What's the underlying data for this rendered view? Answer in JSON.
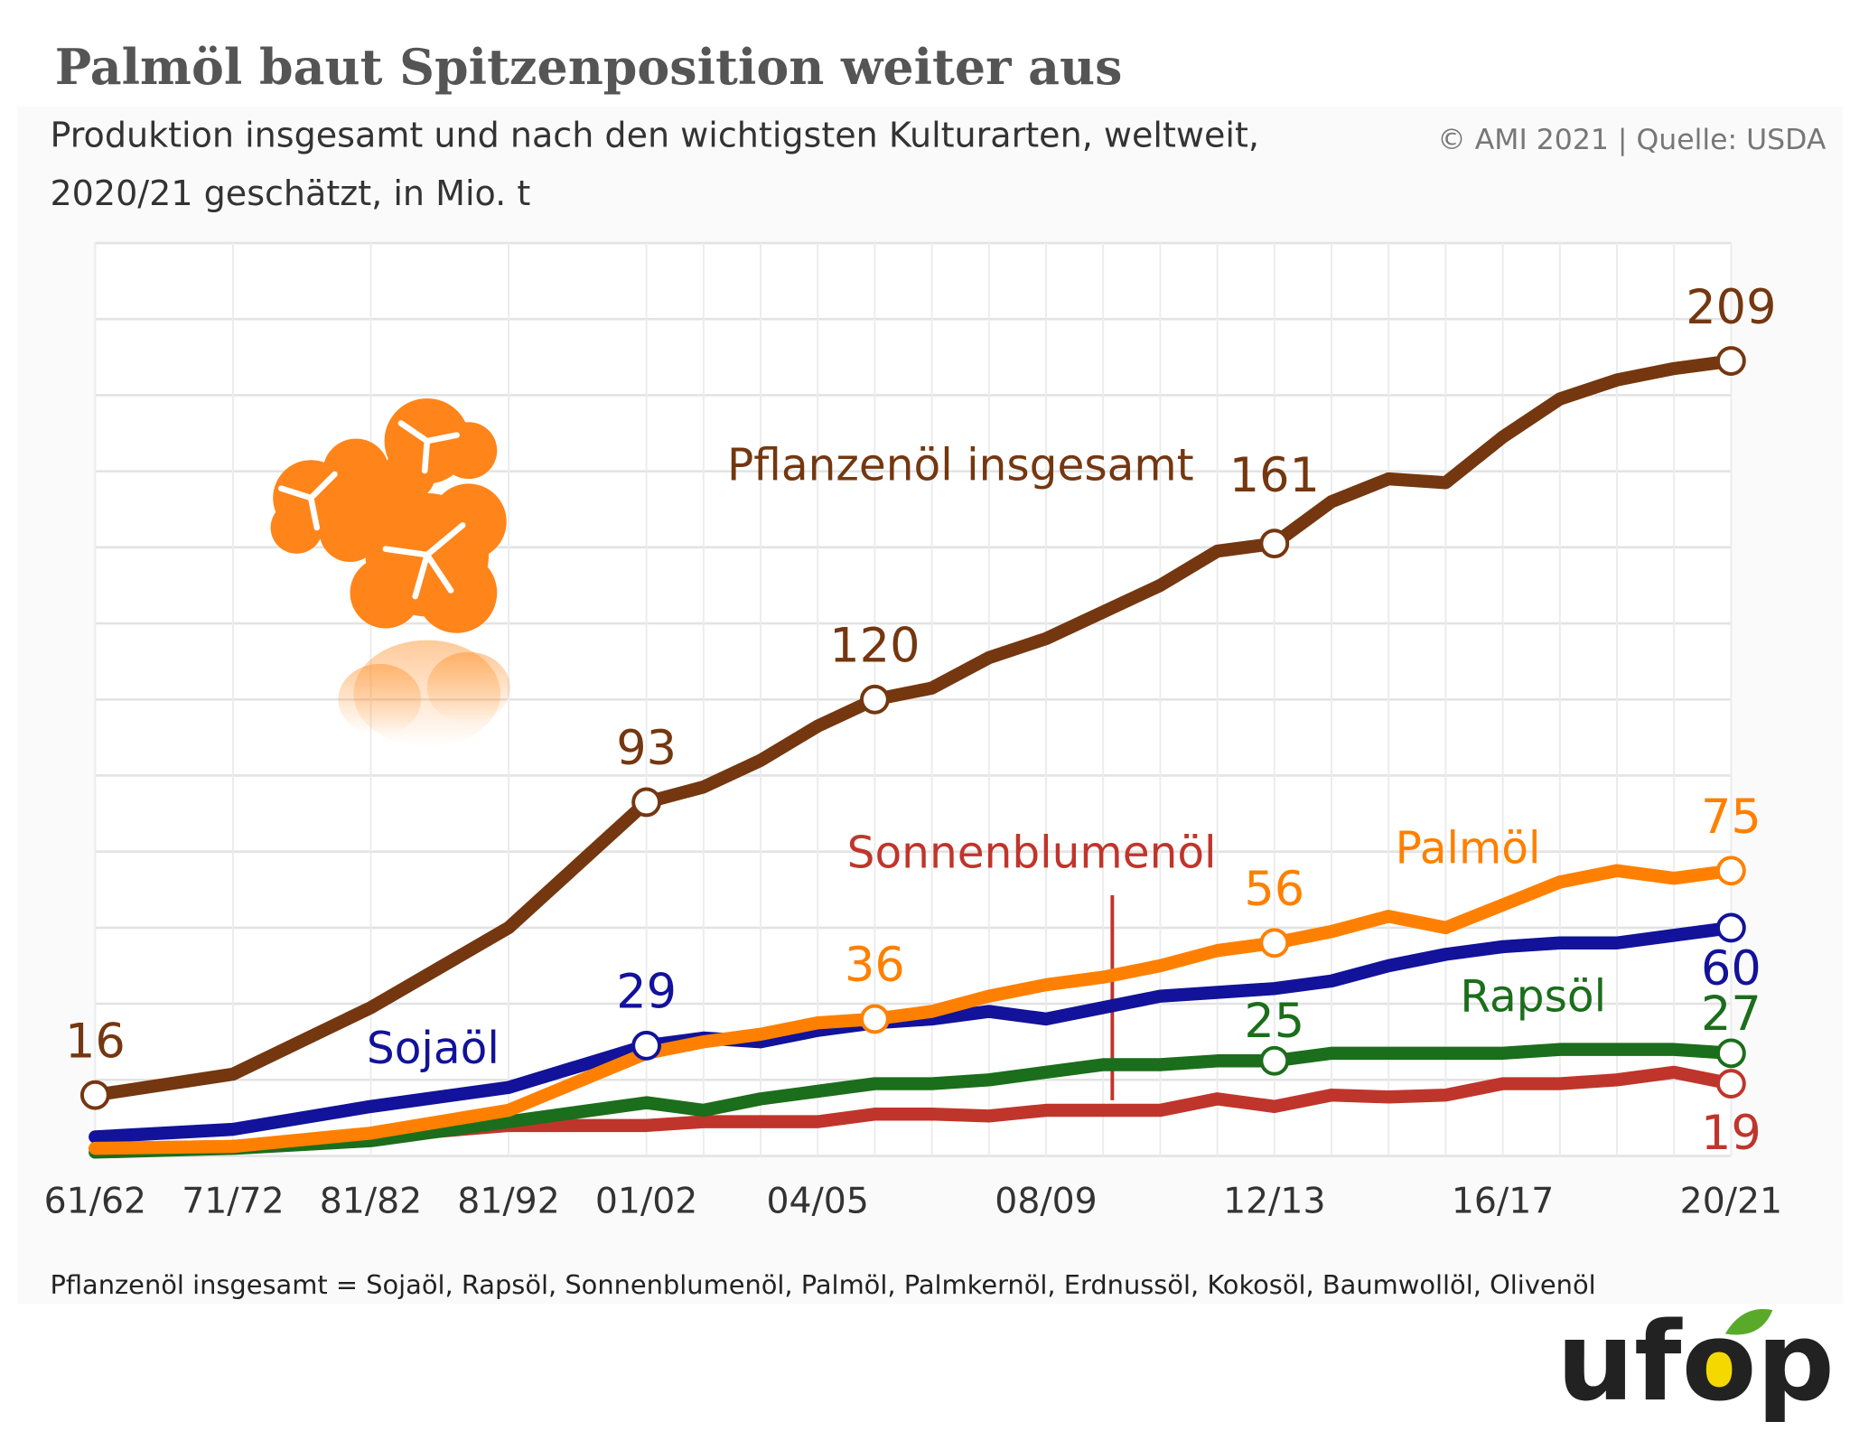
{
  "chart_data": {
    "type": "line",
    "title": "Palmöl baut Spitzenposition weiter aus",
    "subtitle": [
      "Produktion insgesamt und nach den wichtigsten Kulturarten, weltweit,",
      "2020/21 geschätzt, in Mio. t"
    ],
    "source": "© AMI 2021 | Quelle: USDA",
    "footnote": "Pflanzenöl insgesamt = Sojaöl, Rapsöl, Sonnenblumenöl, Palmöl, Palmkernöl, Erdnussöl, Kokosöl, Baumwollöl, Olivenöl",
    "logo": "ufop",
    "categories": [
      "61/62",
      "71/72",
      "81/82",
      "81/92",
      "01/02",
      null,
      null,
      "04/05",
      null,
      null,
      null,
      "08/09",
      null,
      null,
      null,
      "12/13",
      null,
      null,
      null,
      "16/17",
      null,
      null,
      null,
      "20/21"
    ],
    "ylim": [
      0,
      240
    ],
    "yticks": [
      0,
      20,
      40,
      60,
      80,
      100,
      120,
      140,
      160,
      180,
      200,
      220,
      240
    ],
    "grid": true,
    "series": [
      {
        "name": "Sonnenblumenöl",
        "color": "#c0352b",
        "values": [
          2,
          2.5,
          5,
          8,
          8,
          9,
          9,
          9,
          11,
          11,
          10.5,
          12,
          12,
          12,
          15,
          13,
          16,
          15.5,
          16,
          19,
          19,
          20,
          22,
          19
        ],
        "value_labels": [
          null,
          null,
          null,
          null,
          null,
          null,
          null,
          null,
          null,
          null,
          null,
          null,
          null,
          null,
          null,
          null,
          null,
          null,
          null,
          null,
          null,
          null,
          null,
          19
        ]
      },
      {
        "name": "Rapsöl",
        "color": "#1b6e1b",
        "values": [
          1,
          2,
          4,
          9,
          14,
          12,
          15,
          17,
          19,
          19,
          20,
          22,
          24,
          24,
          25,
          25,
          27,
          27,
          27,
          27,
          28,
          28,
          28,
          27
        ],
        "value_labels": [
          null,
          null,
          null,
          null,
          null,
          null,
          null,
          null,
          null,
          null,
          null,
          null,
          null,
          null,
          null,
          25,
          null,
          null,
          null,
          null,
          null,
          null,
          null,
          27
        ]
      },
      {
        "name": "Sojaöl",
        "color": "#12129a",
        "values": [
          5,
          7,
          13,
          18,
          29,
          31,
          30,
          33,
          35,
          36,
          38,
          36,
          39,
          42,
          43,
          44,
          46,
          50,
          53,
          55,
          56,
          56,
          58,
          60
        ],
        "value_labels": [
          null,
          null,
          null,
          null,
          29,
          null,
          null,
          null,
          null,
          null,
          null,
          null,
          null,
          null,
          null,
          null,
          null,
          null,
          null,
          null,
          null,
          null,
          null,
          60
        ]
      },
      {
        "name": "Palmöl",
        "color": "#ff8000",
        "values": [
          2,
          2.5,
          6,
          12,
          27,
          30,
          32,
          35,
          36,
          38,
          42,
          45,
          47,
          50,
          54,
          56,
          59,
          63,
          60,
          66,
          72,
          75,
          73,
          75
        ],
        "value_labels": [
          null,
          null,
          null,
          null,
          null,
          null,
          null,
          null,
          36,
          null,
          null,
          null,
          null,
          null,
          null,
          56,
          null,
          null,
          null,
          null,
          null,
          null,
          null,
          75
        ]
      },
      {
        "name": "Pflanzenöl insgesamt",
        "color": "#743710",
        "values": [
          16,
          21.5,
          39,
          60,
          93,
          97,
          104,
          113,
          120,
          123,
          131,
          136,
          143,
          150,
          159,
          161,
          172,
          178,
          177,
          189,
          199,
          204,
          207,
          209
        ],
        "value_labels": [
          16,
          null,
          null,
          null,
          93,
          null,
          null,
          null,
          120,
          null,
          null,
          null,
          null,
          null,
          null,
          161,
          null,
          null,
          null,
          null,
          null,
          null,
          null,
          209
        ]
      }
    ]
  }
}
